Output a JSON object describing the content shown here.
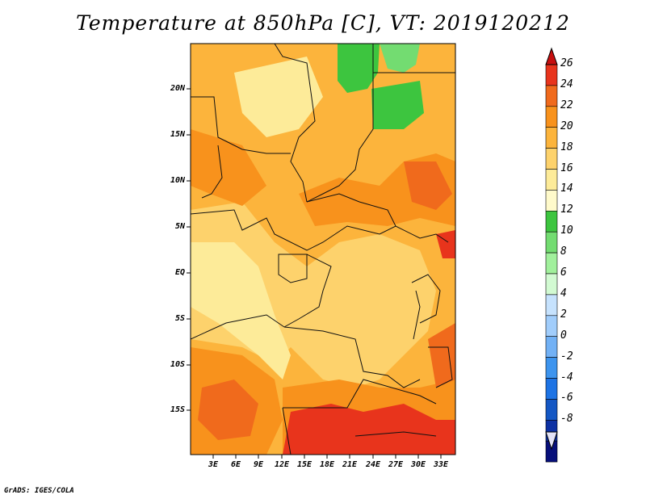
{
  "title": "Temperature at 850hPa [C], VT: 2019120212",
  "credit": "GrADS: IGES/COLA",
  "lat_labels": [
    "20N",
    "15N",
    "10N",
    "5N",
    "EQ",
    "5S",
    "10S",
    "15S"
  ],
  "lon_labels": [
    "3E",
    "6E",
    "9E",
    "12E",
    "15E",
    "18E",
    "21E",
    "24E",
    "27E",
    "30E",
    "33E"
  ],
  "colorbar": {
    "labels": [
      "26",
      "24",
      "22",
      "20",
      "18",
      "16",
      "14",
      "12",
      "10",
      "8",
      "6",
      "4",
      "2",
      "0",
      "-2",
      "-4",
      "-6",
      "-8"
    ],
    "colors": [
      "#e8341c",
      "#f06a1c",
      "#f8921c",
      "#fcb43c",
      "#fdd26c",
      "#fdeb99",
      "#fffacb",
      "#3dc53f",
      "#73dc71",
      "#a1f09c",
      "#d2fad2",
      "#c6e2fd",
      "#a1cdfb",
      "#72b1f5",
      "#3d94ee",
      "#1d73e4",
      "#1457c4",
      "#0d31a3",
      "#070f7a"
    ],
    "top_color": "#c70f0f",
    "bottom_color": "#e3e3f7"
  },
  "map": {
    "field": "Temperature at 850hPa",
    "units": "C",
    "valid_time": "2019120212"
  }
}
